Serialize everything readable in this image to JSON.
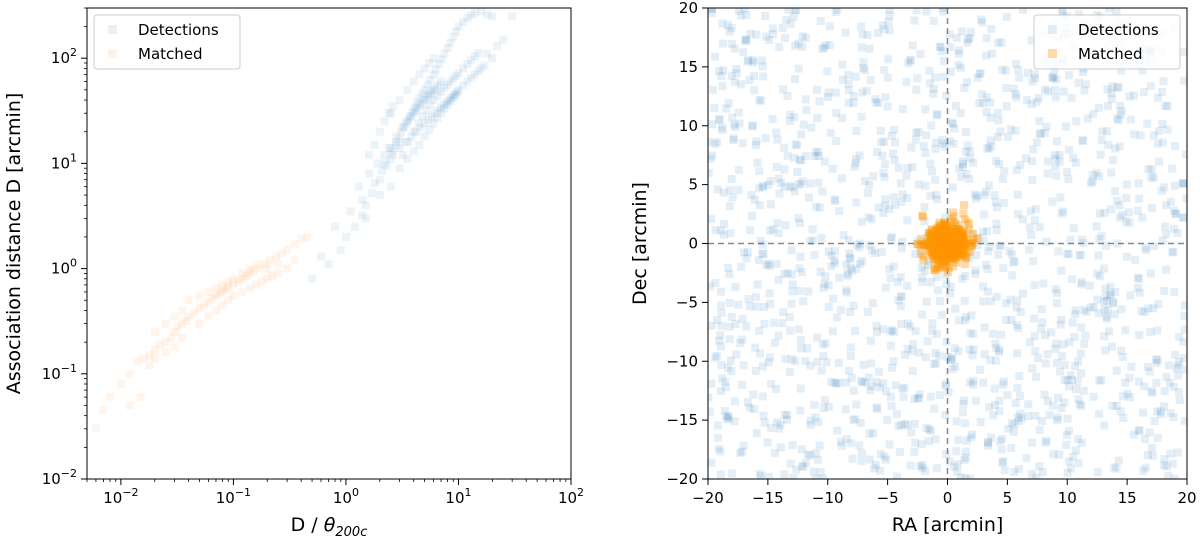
{
  "chart_data": [
    {
      "type": "scatter",
      "xscale": "log",
      "yscale": "log",
      "xlabel_text": "D / ",
      "xlabel_theta": "θ",
      "xlabel_sub": "200c",
      "ylabel": "Association distance D [arcmin]",
      "xlim": [
        0.005,
        100
      ],
      "ylim": [
        0.01,
        300
      ],
      "x_ticks": [
        {
          "value": 0.01,
          "mantissa": "10",
          "exp": "−2"
        },
        {
          "value": 0.1,
          "mantissa": "10",
          "exp": "−1"
        },
        {
          "value": 1,
          "mantissa": "10",
          "exp": "0"
        },
        {
          "value": 10,
          "mantissa": "10",
          "exp": "1"
        },
        {
          "value": 100,
          "mantissa": "10",
          "exp": "2"
        }
      ],
      "y_ticks": [
        {
          "value": 0.01,
          "mantissa": "10",
          "exp": "−2"
        },
        {
          "value": 0.1,
          "mantissa": "10",
          "exp": "−1"
        },
        {
          "value": 1,
          "mantissa": "10",
          "exp": "0"
        },
        {
          "value": 10,
          "mantissa": "10",
          "exp": "1"
        },
        {
          "value": 100,
          "mantissa": "10",
          "exp": "2"
        }
      ],
      "legend_position": "top-left",
      "grid": false,
      "series": [
        {
          "name": "Detections",
          "color": "#1f77b4",
          "alpha": 0.08,
          "marker": "square",
          "points": [
            [
              0.5,
              0.8
            ],
            [
              0.7,
              1.1
            ],
            [
              0.9,
              1.5
            ],
            [
              1.0,
              2.0
            ],
            [
              1.2,
              2.5
            ],
            [
              1.4,
              3.2
            ],
            [
              1.5,
              4.0
            ],
            [
              1.7,
              5.2
            ],
            [
              1.8,
              6.5
            ],
            [
              2.0,
              7.0
            ],
            [
              2.1,
              8.5
            ],
            [
              2.3,
              9.5
            ],
            [
              2.5,
              11
            ],
            [
              2.6,
              13
            ],
            [
              2.8,
              15
            ],
            [
              3.0,
              17
            ],
            [
              3.1,
              20
            ],
            [
              3.3,
              22
            ],
            [
              3.5,
              25
            ],
            [
              3.7,
              28
            ],
            [
              3.9,
              31
            ],
            [
              4.1,
              34
            ],
            [
              4.3,
              38
            ],
            [
              4.5,
              42
            ],
            [
              4.8,
              46
            ],
            [
              5.0,
              50
            ],
            [
              5.3,
              56
            ],
            [
              5.6,
              62
            ],
            [
              6.0,
              70
            ],
            [
              6.3,
              78
            ],
            [
              6.7,
              88
            ],
            [
              7.1,
              98
            ],
            [
              7.5,
              110
            ],
            [
              8.0,
              125
            ],
            [
              8.5,
              140
            ],
            [
              9.0,
              160
            ],
            [
              9.5,
              180
            ],
            [
              10,
              200
            ],
            [
              11,
              220
            ],
            [
              12,
              240
            ],
            [
              13,
              255
            ],
            [
              14,
              270
            ],
            [
              16,
              280
            ],
            [
              18,
              260
            ],
            [
              20,
              250
            ],
            [
              3.2,
              12
            ],
            [
              3.6,
              16
            ],
            [
              4.0,
              20
            ],
            [
              4.4,
              24
            ],
            [
              4.8,
              28
            ],
            [
              5.2,
              32
            ],
            [
              5.6,
              36
            ],
            [
              6.0,
              40
            ],
            [
              6.5,
              44
            ],
            [
              7.0,
              48
            ],
            [
              7.5,
              52
            ],
            [
              8.0,
              56
            ],
            [
              8.5,
              60
            ],
            [
              9.0,
              64
            ],
            [
              9.5,
              68
            ],
            [
              10,
              72
            ],
            [
              11,
              80
            ],
            [
              12,
              88
            ],
            [
              13,
              96
            ],
            [
              14,
              104
            ],
            [
              15,
              112
            ],
            [
              2.4,
              14
            ],
            [
              2.8,
              18
            ],
            [
              3.2,
              22
            ],
            [
              3.6,
              26
            ],
            [
              4.0,
              30
            ],
            [
              4.4,
              34
            ],
            [
              4.8,
              38
            ],
            [
              5.2,
              42
            ],
            [
              5.6,
              46
            ],
            [
              6.0,
              50
            ],
            [
              2.5,
              30
            ],
            [
              3.0,
              40
            ],
            [
              3.5,
              50
            ],
            [
              4.0,
              60
            ],
            [
              4.5,
              70
            ],
            [
              5.0,
              80
            ],
            [
              5.5,
              90
            ],
            [
              6.0,
              100
            ],
            [
              2.0,
              20
            ],
            [
              2.2,
              25
            ],
            [
              2.4,
              30
            ],
            [
              2.6,
              35
            ],
            [
              1.6,
              12
            ],
            [
              1.8,
              15
            ],
            [
              2.2,
              10
            ],
            [
              2.6,
              12
            ],
            [
              3.0,
              14
            ],
            [
              3.4,
              16
            ],
            [
              3.8,
              18
            ],
            [
              4.2,
              20
            ],
            [
              4.6,
              22
            ],
            [
              5.0,
              24
            ],
            [
              5.4,
              26
            ],
            [
              5.8,
              28
            ],
            [
              6.2,
              30
            ],
            [
              6.6,
              32
            ],
            [
              7.0,
              34
            ],
            [
              7.4,
              36
            ],
            [
              7.8,
              38
            ],
            [
              8.2,
              40
            ],
            [
              8.6,
              42
            ],
            [
              9.0,
              44
            ],
            [
              9.4,
              46
            ],
            [
              9.8,
              48
            ],
            [
              3.4,
              24
            ],
            [
              3.8,
              28
            ],
            [
              4.2,
              32
            ],
            [
              4.6,
              36
            ],
            [
              5.0,
              40
            ],
            [
              5.4,
              44
            ],
            [
              5.8,
              48
            ],
            [
              6.2,
              52
            ],
            [
              6.6,
              56
            ],
            [
              7.0,
              60
            ],
            [
              1.3,
              6
            ],
            [
              1.6,
              8
            ],
            [
              1.9,
              10
            ],
            [
              2.2,
              12
            ],
            [
              2.5,
              14
            ],
            [
              2.8,
              16
            ],
            [
              0.8,
              2.5
            ],
            [
              1.1,
              3.5
            ],
            [
              1.4,
              4.5
            ],
            [
              0.6,
              1.3
            ],
            [
              4.5,
              15
            ],
            [
              5.0,
              18
            ],
            [
              5.5,
              21
            ],
            [
              6.0,
              24
            ],
            [
              6.5,
              27
            ],
            [
              7.0,
              30
            ],
            [
              7.5,
              33
            ],
            [
              8.0,
              36
            ],
            [
              8.5,
              39
            ],
            [
              9.0,
              42
            ],
            [
              9.5,
              45
            ],
            [
              10,
              50
            ],
            [
              11,
              55
            ],
            [
              12,
              60
            ],
            [
              13,
              65
            ],
            [
              14,
              70
            ],
            [
              15,
              75
            ],
            [
              16,
              80
            ],
            [
              17,
              85
            ],
            [
              20,
              100
            ],
            [
              25,
              150
            ],
            [
              30,
              250
            ],
            [
              22,
              130
            ],
            [
              18,
              110
            ],
            [
              3.0,
              9
            ],
            [
              3.5,
              11
            ],
            [
              4.0,
              13
            ],
            [
              2.0,
              5
            ],
            [
              2.5,
              6
            ],
            [
              1.5,
              3
            ]
          ]
        },
        {
          "name": "Matched",
          "color": "#ff7f0e",
          "alpha": 0.08,
          "marker": "square",
          "points": [
            [
              0.006,
              0.03
            ],
            [
              0.007,
              0.045
            ],
            [
              0.008,
              0.06
            ],
            [
              0.01,
              0.08
            ],
            [
              0.012,
              0.1
            ],
            [
              0.014,
              0.13
            ],
            [
              0.016,
              0.14
            ],
            [
              0.018,
              0.15
            ],
            [
              0.02,
              0.17
            ],
            [
              0.022,
              0.19
            ],
            [
              0.025,
              0.2
            ],
            [
              0.028,
              0.22
            ],
            [
              0.03,
              0.25
            ],
            [
              0.032,
              0.28
            ],
            [
              0.035,
              0.3
            ],
            [
              0.038,
              0.32
            ],
            [
              0.04,
              0.35
            ],
            [
              0.045,
              0.38
            ],
            [
              0.05,
              0.42
            ],
            [
              0.055,
              0.45
            ],
            [
              0.06,
              0.48
            ],
            [
              0.065,
              0.52
            ],
            [
              0.07,
              0.55
            ],
            [
              0.075,
              0.58
            ],
            [
              0.08,
              0.6
            ],
            [
              0.085,
              0.63
            ],
            [
              0.09,
              0.66
            ],
            [
              0.1,
              0.7
            ],
            [
              0.11,
              0.75
            ],
            [
              0.12,
              0.8
            ],
            [
              0.13,
              0.85
            ],
            [
              0.14,
              0.9
            ],
            [
              0.15,
              0.95
            ],
            [
              0.17,
              1.0
            ],
            [
              0.19,
              1.1
            ],
            [
              0.21,
              1.2
            ],
            [
              0.24,
              1.3
            ],
            [
              0.27,
              1.4
            ],
            [
              0.3,
              1.5
            ],
            [
              0.35,
              1.7
            ],
            [
              0.4,
              1.9
            ],
            [
              0.45,
              2.0
            ],
            [
              0.05,
              0.3
            ],
            [
              0.06,
              0.35
            ],
            [
              0.07,
              0.4
            ],
            [
              0.08,
              0.45
            ],
            [
              0.09,
              0.5
            ],
            [
              0.1,
              0.55
            ],
            [
              0.12,
              0.6
            ],
            [
              0.14,
              0.65
            ],
            [
              0.16,
              0.7
            ],
            [
              0.18,
              0.75
            ],
            [
              0.2,
              0.8
            ],
            [
              0.22,
              0.85
            ],
            [
              0.25,
              0.9
            ],
            [
              0.04,
              0.5
            ],
            [
              0.05,
              0.55
            ],
            [
              0.06,
              0.6
            ],
            [
              0.07,
              0.65
            ],
            [
              0.08,
              0.7
            ],
            [
              0.09,
              0.75
            ],
            [
              0.1,
              0.8
            ],
            [
              0.12,
              0.9
            ],
            [
              0.14,
              1.0
            ],
            [
              0.16,
              1.1
            ],
            [
              0.018,
              0.12
            ],
            [
              0.02,
              0.14
            ],
            [
              0.025,
              0.16
            ],
            [
              0.03,
              0.18
            ],
            [
              0.035,
              0.22
            ],
            [
              0.02,
              0.25
            ],
            [
              0.025,
              0.3
            ],
            [
              0.03,
              0.35
            ],
            [
              0.035,
              0.4
            ],
            [
              0.3,
              1.0
            ],
            [
              0.35,
              1.2
            ],
            [
              0.25,
              1.1
            ],
            [
              0.2,
              1.0
            ],
            [
              0.015,
              0.06
            ],
            [
              0.012,
              0.05
            ]
          ]
        }
      ]
    },
    {
      "type": "scatter",
      "xscale": "linear",
      "yscale": "linear",
      "xlabel": "RA [arcmin]",
      "ylabel": "Dec [arcmin]",
      "xlim": [
        -20,
        20
      ],
      "ylim": [
        -20,
        20
      ],
      "x_ticks": [
        {
          "value": -20,
          "label": "−20"
        },
        {
          "value": -15,
          "label": "−15"
        },
        {
          "value": -10,
          "label": "−10"
        },
        {
          "value": -5,
          "label": "−5"
        },
        {
          "value": 0,
          "label": "0"
        },
        {
          "value": 5,
          "label": "5"
        },
        {
          "value": 10,
          "label": "10"
        },
        {
          "value": 15,
          "label": "15"
        },
        {
          "value": 20,
          "label": "20"
        }
      ],
      "y_ticks": [
        {
          "value": -20,
          "label": "−20"
        },
        {
          "value": -15,
          "label": "−15"
        },
        {
          "value": -10,
          "label": "−10"
        },
        {
          "value": -5,
          "label": "−5"
        },
        {
          "value": 0,
          "label": "0"
        },
        {
          "value": 5,
          "label": "5"
        },
        {
          "value": 10,
          "label": "10"
        },
        {
          "value": 15,
          "label": "15"
        },
        {
          "value": 20,
          "label": "20"
        }
      ],
      "reference_lines": {
        "x": 0,
        "y": 0,
        "style": "dashed",
        "color": "#888888"
      },
      "legend_position": "top-right",
      "grid": false,
      "series": [
        {
          "name": "Detections",
          "color": "#1f77b4",
          "alpha": 0.12,
          "marker": "square",
          "distribution": "uniform",
          "count": 1400,
          "seed": 7
        },
        {
          "name": "Matched",
          "color": "#ff9500",
          "alpha": 0.35,
          "marker": "square",
          "distribution": "gaussian",
          "center": [
            0,
            0
          ],
          "sigma": 0.9,
          "count": 500,
          "seed": 11
        }
      ]
    }
  ]
}
